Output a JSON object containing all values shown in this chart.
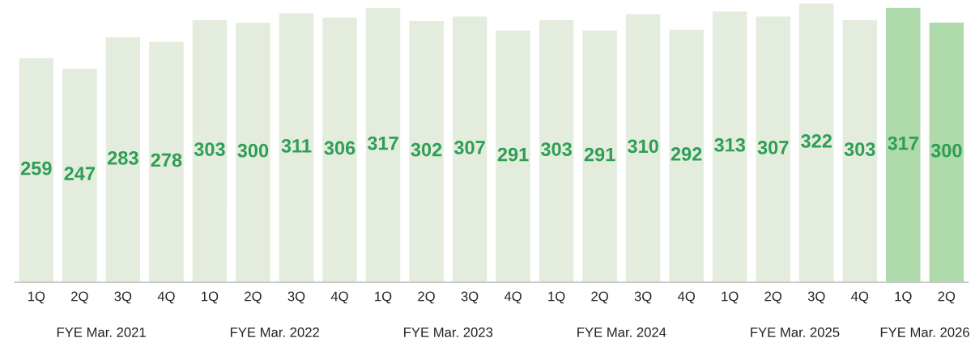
{
  "chart_data": {
    "type": "bar",
    "categories": [
      "1Q",
      "2Q",
      "3Q",
      "4Q",
      "1Q",
      "2Q",
      "3Q",
      "4Q",
      "1Q",
      "2Q",
      "3Q",
      "4Q",
      "1Q",
      "2Q",
      "3Q",
      "4Q",
      "1Q",
      "2Q",
      "3Q",
      "4Q",
      "1Q",
      "2Q"
    ],
    "values": [
      259,
      247,
      283,
      278,
      303,
      300,
      311,
      306,
      317,
      302,
      307,
      291,
      303,
      291,
      310,
      292,
      313,
      307,
      322,
      303,
      317,
      300
    ],
    "colors": [
      "#e2efda",
      "#e2efda",
      "#e2efda",
      "#e2efda",
      "#e2efda",
      "#e2efda",
      "#e2efda",
      "#e2efda",
      "#e2efda",
      "#e2efda",
      "#e2efda",
      "#e2efda",
      "#e2efda",
      "#e2efda",
      "#e2efda",
      "#e2efda",
      "#e2efda",
      "#e2efda",
      "#e2efda",
      "#e2efda",
      "#a9e2a3",
      "#a9e2a3"
    ],
    "data_labels": true,
    "annotations": [
      "FYE Mar. 2021",
      "FYE Mar. 2022",
      "FYE Mar. 2023",
      "FYE Mar. 2024",
      "FYE Mar. 2025",
      "FYE Mar. 2026"
    ],
    "grid": false,
    "legend": false
  }
}
